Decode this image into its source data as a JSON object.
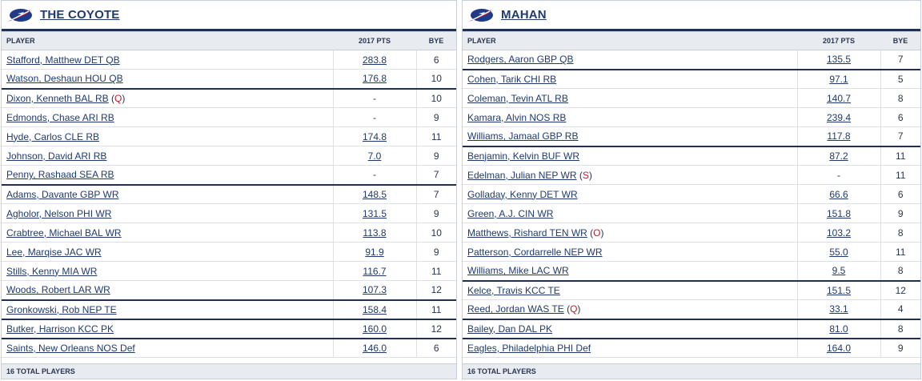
{
  "columns": {
    "player": "PLAYER",
    "pts": "2017 PTS",
    "bye": "BYE"
  },
  "teams": [
    {
      "name": "THE COYOTE",
      "footer": "16 TOTAL PLAYERS",
      "rows": [
        {
          "player": "Stafford, Matthew DET QB",
          "status": "",
          "pts": "283.8",
          "bye": "6",
          "group_end": false
        },
        {
          "player": "Watson, Deshaun HOU QB",
          "status": "",
          "pts": "176.8",
          "bye": "10",
          "group_end": true
        },
        {
          "player": "Dixon, Kenneth BAL RB",
          "status": "Q",
          "pts": "-",
          "bye": "10",
          "group_end": false
        },
        {
          "player": "Edmonds, Chase ARI RB",
          "status": "",
          "pts": "-",
          "bye": "9",
          "group_end": false
        },
        {
          "player": "Hyde, Carlos CLE RB",
          "status": "",
          "pts": "174.8",
          "bye": "11",
          "group_end": false
        },
        {
          "player": "Johnson, David ARI RB",
          "status": "",
          "pts": "7.0",
          "bye": "9",
          "group_end": false
        },
        {
          "player": "Penny, Rashaad SEA RB",
          "status": "",
          "pts": "-",
          "bye": "7",
          "group_end": true
        },
        {
          "player": "Adams, Davante GBP WR",
          "status": "",
          "pts": "148.5",
          "bye": "7",
          "group_end": false
        },
        {
          "player": "Agholor, Nelson PHI WR",
          "status": "",
          "pts": "131.5",
          "bye": "9",
          "group_end": false
        },
        {
          "player": "Crabtree, Michael BAL WR",
          "status": "",
          "pts": "113.8",
          "bye": "10",
          "group_end": false
        },
        {
          "player": "Lee, Marqise JAC WR",
          "status": "",
          "pts": "91.9",
          "bye": "9",
          "group_end": false
        },
        {
          "player": "Stills, Kenny MIA WR",
          "status": "",
          "pts": "116.7",
          "bye": "11",
          "group_end": false
        },
        {
          "player": "Woods, Robert LAR WR",
          "status": "",
          "pts": "107.3",
          "bye": "12",
          "group_end": true
        },
        {
          "player": "Gronkowski, Rob NEP TE",
          "status": "",
          "pts": "158.4",
          "bye": "11",
          "group_end": true
        },
        {
          "player": "Butker, Harrison KCC PK",
          "status": "",
          "pts": "160.0",
          "bye": "12",
          "group_end": true
        },
        {
          "player": "Saints, New Orleans NOS Def",
          "status": "",
          "pts": "146.0",
          "bye": "6",
          "group_end": false
        }
      ]
    },
    {
      "name": "MAHAN",
      "footer": "16 TOTAL PLAYERS",
      "rows": [
        {
          "player": "Rodgers, Aaron GBP QB",
          "status": "",
          "pts": "135.5",
          "bye": "7",
          "group_end": true
        },
        {
          "player": "Cohen, Tarik CHI RB",
          "status": "",
          "pts": "97.1",
          "bye": "5",
          "group_end": false
        },
        {
          "player": "Coleman, Tevin ATL RB",
          "status": "",
          "pts": "140.7",
          "bye": "8",
          "group_end": false
        },
        {
          "player": "Kamara, Alvin NOS RB",
          "status": "",
          "pts": "239.4",
          "bye": "6",
          "group_end": false
        },
        {
          "player": "Williams, Jamaal GBP RB",
          "status": "",
          "pts": "117.8",
          "bye": "7",
          "group_end": true
        },
        {
          "player": "Benjamin, Kelvin BUF WR",
          "status": "",
          "pts": "87.2",
          "bye": "11",
          "group_end": false
        },
        {
          "player": "Edelman, Julian NEP WR",
          "status": "S",
          "pts": "-",
          "bye": "11",
          "group_end": false
        },
        {
          "player": "Golladay, Kenny DET WR",
          "status": "",
          "pts": "66.6",
          "bye": "6",
          "group_end": false
        },
        {
          "player": "Green, A.J. CIN WR",
          "status": "",
          "pts": "151.8",
          "bye": "9",
          "group_end": false
        },
        {
          "player": "Matthews, Rishard TEN WR",
          "status": "O",
          "pts": "103.2",
          "bye": "8",
          "group_end": false
        },
        {
          "player": "Patterson, Cordarrelle NEP WR",
          "status": "",
          "pts": "55.0",
          "bye": "11",
          "group_end": false
        },
        {
          "player": "Williams, Mike LAC WR",
          "status": "",
          "pts": "9.5",
          "bye": "8",
          "group_end": true
        },
        {
          "player": "Kelce, Travis KCC TE",
          "status": "",
          "pts": "151.5",
          "bye": "12",
          "group_end": false
        },
        {
          "player": "Reed, Jordan WAS TE",
          "status": "Q",
          "pts": "33.1",
          "bye": "4",
          "group_end": true
        },
        {
          "player": "Bailey, Dan DAL PK",
          "status": "",
          "pts": "81.0",
          "bye": "8",
          "group_end": true
        },
        {
          "player": "Eagles, Philadelphia PHI Def",
          "status": "",
          "pts": "164.0",
          "bye": "9",
          "group_end": false
        }
      ]
    }
  ],
  "colors": {
    "accent_navy": "#1f3055",
    "link": "#1f3a6e",
    "status_red": "#b8202a",
    "header_bg": "#e8ebef"
  },
  "icons": {
    "team_logo": "team-logo-icon"
  }
}
